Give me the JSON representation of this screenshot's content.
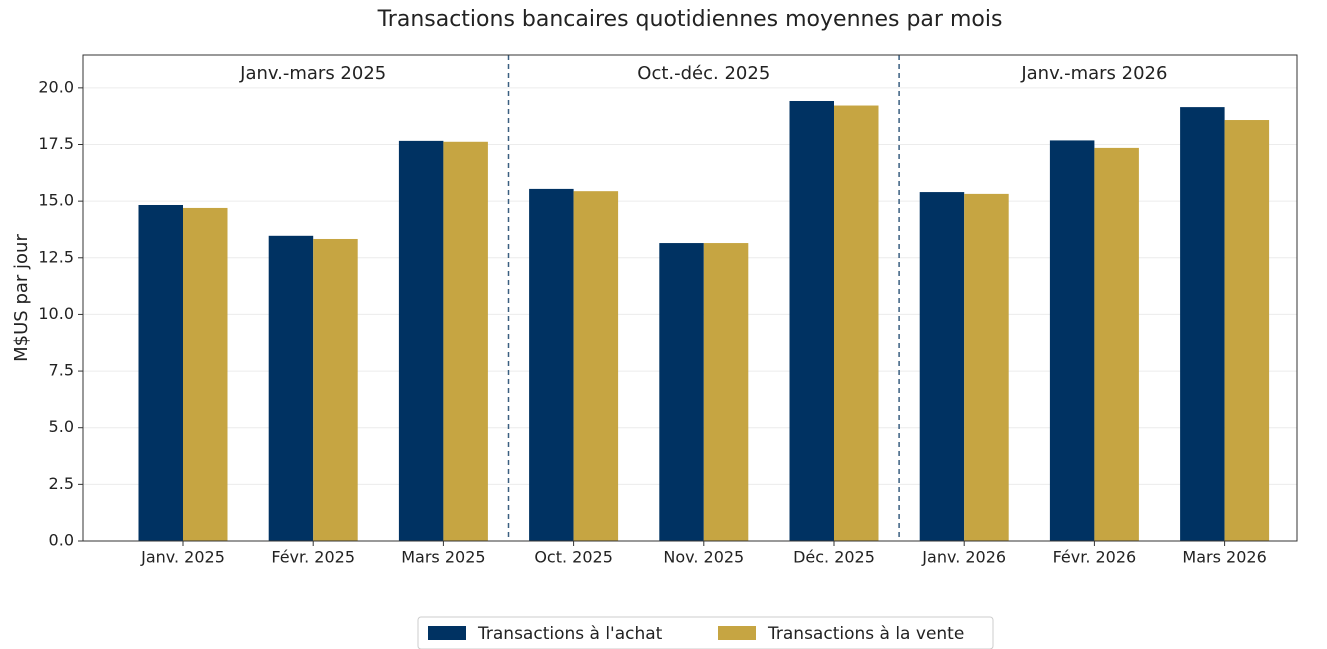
{
  "chart_data": {
    "type": "bar",
    "title": "Transactions bancaires quotidiennes moyennes par mois",
    "y_label": "M$US par jour",
    "categories": [
      "Janv. 2025",
      "Févr. 2025",
      "Mars 2025",
      "Oct. 2025",
      "Nov. 2025",
      "Déc. 2025",
      "Janv. 2026",
      "Févr. 2026",
      "Mars 2026"
    ],
    "series": [
      {
        "name": "Transactions à l'achat",
        "color": "#003262",
        "values": [
          14.83,
          13.47,
          17.66,
          15.54,
          13.15,
          19.42,
          15.4,
          17.68,
          19.15
        ]
      },
      {
        "name": "Transactions à la vente",
        "color": "#c6a542",
        "values": [
          14.7,
          13.33,
          17.62,
          15.44,
          13.15,
          19.22,
          15.32,
          17.35,
          18.58
        ]
      }
    ],
    "groups": [
      {
        "label": "Janv.-mars 2025",
        "span": 3
      },
      {
        "label": "Oct.-déc. 2025",
        "span": 3
      },
      {
        "label": "Janv.-mars 2026",
        "span": 3
      }
    ],
    "ylim": [
      0,
      21.45
    ],
    "yticks": [
      {
        "value": 0,
        "label": "0.0"
      },
      2.5,
      {
        "value": 5,
        "label": "5.0"
      },
      7.5,
      {
        "value": 10,
        "label": "10.0"
      },
      12.5,
      {
        "value": 15,
        "label": "15.0"
      },
      17.5,
      {
        "value": 20,
        "label": "20.0"
      }
    ],
    "grid": true,
    "legend": "bottom"
  }
}
